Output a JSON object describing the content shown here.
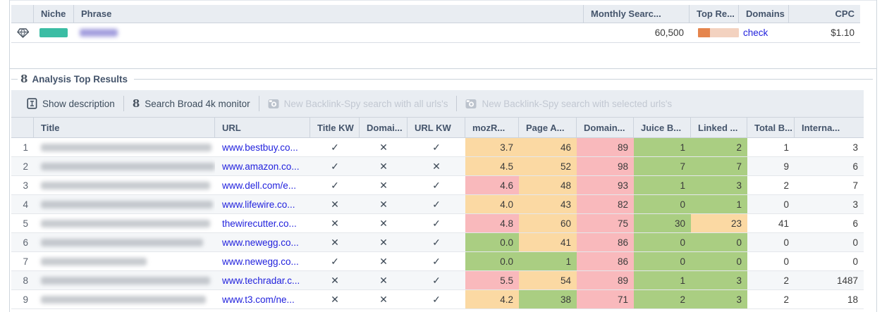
{
  "icons": {
    "hourglass_glyph": "8"
  },
  "keyword_table": {
    "headers": {
      "niche": "Niche",
      "phrase": "Phrase",
      "monthly_searches": "Monthly Searc...",
      "top_results": "Top Re...",
      "domains": "Domains",
      "cpc": "CPC"
    },
    "row": {
      "monthly_searches": "60,500",
      "domains_link": "check",
      "cpc": "$1.10",
      "niche_redacted_width": 40,
      "phrase_redacted_width": 54
    },
    "colors": {
      "niche_swatch": "#3bbda4",
      "top_bar_fill": "#e5854d",
      "top_bar_track": "#f3d2c0"
    }
  },
  "analysis": {
    "legend": "Analysis Top Results",
    "toolbar": [
      {
        "label": "Show description",
        "icon": "show-description-icon",
        "enabled": true
      },
      {
        "label": "Search Broad 4k monitor",
        "icon": "hourglass-icon",
        "enabled": true
      },
      {
        "label": "New Backlink-Spy search with all urls's",
        "icon": "backlink-spy-icon",
        "enabled": false
      },
      {
        "label": "New Backlink-Spy search with selected urls's",
        "icon": "backlink-spy-icon",
        "enabled": false
      }
    ],
    "cell_colors": {
      "orange": "#fbd9a3",
      "pink": "#f9b9bc",
      "green": "#aace82"
    },
    "table": {
      "headers": [
        "",
        "Title",
        "URL",
        "Title KW",
        "Domai...",
        "URL KW",
        "mozR...",
        "Page A...",
        "Domain...",
        "Juice B...",
        "Linked ...",
        "Total B...",
        "Interna..."
      ],
      "rows": [
        {
          "num": "1",
          "title_redacted_width": 242,
          "url": "www.bestbuy.co...",
          "title_kw": "✓",
          "domain_kw": "✕",
          "url_kw": "✓",
          "mozrank": {
            "value": "3.7",
            "color": "orange"
          },
          "page_authority": {
            "value": "46",
            "color": "orange"
          },
          "domain_authority": {
            "value": "89",
            "color": "pink"
          },
          "juice_backlinks": {
            "value": "1",
            "color": "green"
          },
          "linked": {
            "value": "2",
            "color": "green"
          },
          "total_backlinks": "1",
          "internal": "3"
        },
        {
          "num": "2",
          "title_redacted_width": 250,
          "url": "www.amazon.co...",
          "title_kw": "✓",
          "domain_kw": "✕",
          "url_kw": "✕",
          "mozrank": {
            "value": "4.5",
            "color": "orange"
          },
          "page_authority": {
            "value": "52",
            "color": "orange"
          },
          "domain_authority": {
            "value": "98",
            "color": "pink"
          },
          "juice_backlinks": {
            "value": "7",
            "color": "green"
          },
          "linked": {
            "value": "7",
            "color": "green"
          },
          "total_backlinks": "9",
          "internal": "6"
        },
        {
          "num": "3",
          "title_redacted_width": 240,
          "url": "www.dell.com/e...",
          "title_kw": "✓",
          "domain_kw": "✕",
          "url_kw": "✓",
          "mozrank": {
            "value": "4.6",
            "color": "pink"
          },
          "page_authority": {
            "value": "48",
            "color": "orange"
          },
          "domain_authority": {
            "value": "93",
            "color": "pink"
          },
          "juice_backlinks": {
            "value": "1",
            "color": "green"
          },
          "linked": {
            "value": "3",
            "color": "green"
          },
          "total_backlinks": "2",
          "internal": "7"
        },
        {
          "num": "4",
          "title_redacted_width": 244,
          "url": "www.lifewire.co...",
          "title_kw": "✕",
          "domain_kw": "✕",
          "url_kw": "✓",
          "mozrank": {
            "value": "4.0",
            "color": "orange"
          },
          "page_authority": {
            "value": "43",
            "color": "orange"
          },
          "domain_authority": {
            "value": "82",
            "color": "pink"
          },
          "juice_backlinks": {
            "value": "0",
            "color": "green"
          },
          "linked": {
            "value": "1",
            "color": "green"
          },
          "total_backlinks": "0",
          "internal": "3"
        },
        {
          "num": "5",
          "title_redacted_width": 240,
          "url": "thewirecutter.co...",
          "title_kw": "✕",
          "domain_kw": "✕",
          "url_kw": "✓",
          "mozrank": {
            "value": "4.8",
            "color": "pink"
          },
          "page_authority": {
            "value": "60",
            "color": "orange"
          },
          "domain_authority": {
            "value": "75",
            "color": "pink"
          },
          "juice_backlinks": {
            "value": "30",
            "color": "green"
          },
          "linked": {
            "value": "23",
            "color": "orange"
          },
          "total_backlinks": "41",
          "internal": "6"
        },
        {
          "num": "6",
          "title_redacted_width": 230,
          "url": "www.newegg.co...",
          "title_kw": "✕",
          "domain_kw": "✕",
          "url_kw": "✓",
          "mozrank": {
            "value": "0.0",
            "color": "green"
          },
          "page_authority": {
            "value": "41",
            "color": "orange"
          },
          "domain_authority": {
            "value": "86",
            "color": "pink"
          },
          "juice_backlinks": {
            "value": "0",
            "color": "green"
          },
          "linked": {
            "value": "0",
            "color": "green"
          },
          "total_backlinks": "0",
          "internal": "0"
        },
        {
          "num": "7",
          "title_redacted_width": 150,
          "url": "www.newegg.co...",
          "title_kw": "✓",
          "domain_kw": "✕",
          "url_kw": "✓",
          "mozrank": {
            "value": "0.0",
            "color": "green"
          },
          "page_authority": {
            "value": "1",
            "color": "green"
          },
          "domain_authority": {
            "value": "86",
            "color": "pink"
          },
          "juice_backlinks": {
            "value": "0",
            "color": "green"
          },
          "linked": {
            "value": "0",
            "color": "green"
          },
          "total_backlinks": "0",
          "internal": "0"
        },
        {
          "num": "8",
          "title_redacted_width": 240,
          "url": "www.techradar.c...",
          "title_kw": "✕",
          "domain_kw": "✕",
          "url_kw": "✓",
          "mozrank": {
            "value": "5.5",
            "color": "pink"
          },
          "page_authority": {
            "value": "54",
            "color": "orange"
          },
          "domain_authority": {
            "value": "89",
            "color": "pink"
          },
          "juice_backlinks": {
            "value": "1",
            "color": "green"
          },
          "linked": {
            "value": "3",
            "color": "green"
          },
          "total_backlinks": "2",
          "internal": "1487"
        },
        {
          "num": "9",
          "title_redacted_width": 234,
          "url": "www.t3.com/ne...",
          "title_kw": "✕",
          "domain_kw": "✕",
          "url_kw": "✓",
          "mozrank": {
            "value": "4.2",
            "color": "orange"
          },
          "page_authority": {
            "value": "38",
            "color": "green"
          },
          "domain_authority": {
            "value": "71",
            "color": "pink"
          },
          "juice_backlinks": {
            "value": "2",
            "color": "green"
          },
          "linked": {
            "value": "3",
            "color": "green"
          },
          "total_backlinks": "2",
          "internal": "18"
        }
      ]
    }
  }
}
